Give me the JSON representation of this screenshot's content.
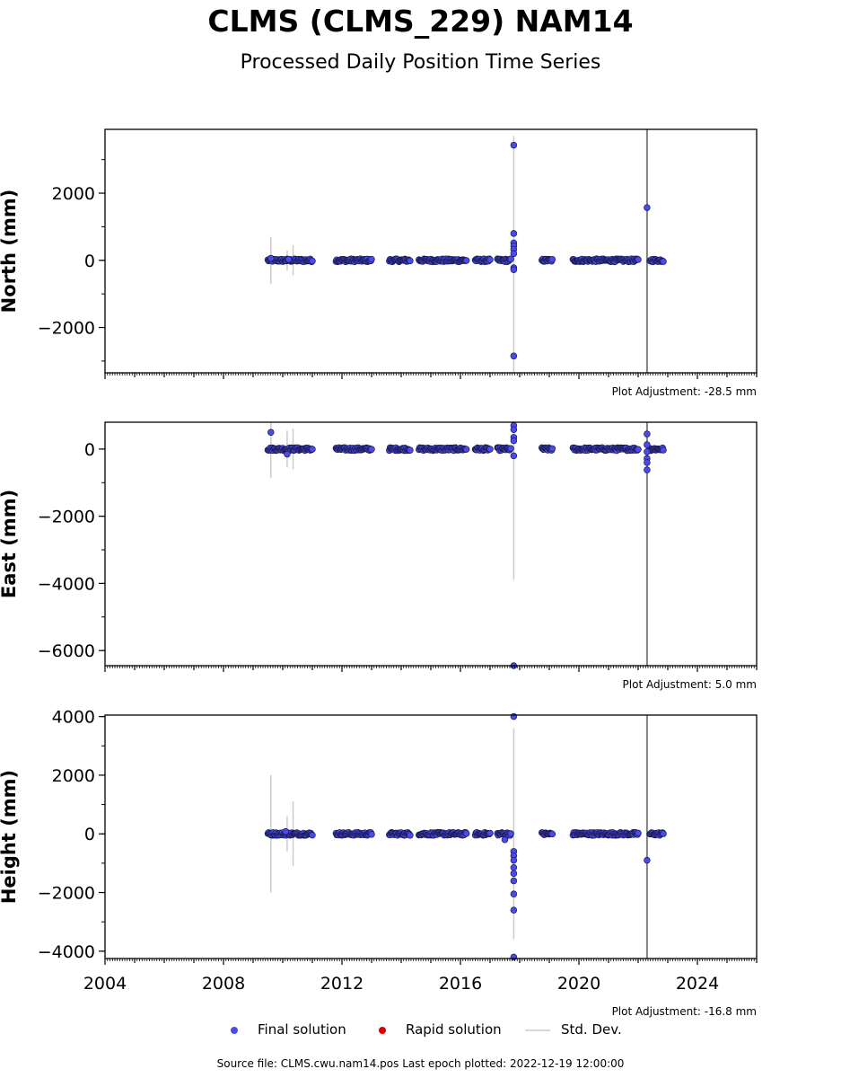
{
  "header": {
    "title": "CLMS (CLMS_229) NAM14",
    "subtitle": "Processed Daily Position Time Series"
  },
  "legend": {
    "final_label": "Final solution",
    "rapid_label": "Rapid solution",
    "std_label": "Std. Dev."
  },
  "footer": {
    "source": "Source file: CLMS.cwu.nam14.pos  Last epoch plotted: 2022-12-19 12:00:00"
  },
  "colors": {
    "final": "#4b4bec",
    "final_edge": "#1a1a50",
    "rapid": "#dd0000",
    "stddev": "#cccccc",
    "marker_line": "#808080"
  },
  "chart_data": [
    {
      "type": "scatter",
      "ylabel": "North (mm)",
      "xlim": [
        2004,
        2026
      ],
      "ylim": [
        -3350,
        3900
      ],
      "yticks": [
        -2000,
        0,
        2000
      ],
      "xticks": [
        2004,
        2008,
        2012,
        2016,
        2020,
        2024
      ],
      "show_xtick_labels": false,
      "adjustment": "Plot Adjustment: -28.5 mm",
      "equipment_change": 2022.3,
      "segments": [
        [
          2009.5,
          2011.0
        ],
        [
          2011.8,
          2013.0
        ],
        [
          2013.6,
          2014.3
        ],
        [
          2014.6,
          2016.2
        ],
        [
          2016.5,
          2017.0
        ],
        [
          2017.25,
          2017.7
        ],
        [
          2018.75,
          2019.1
        ],
        [
          2019.8,
          2022.0
        ],
        [
          2022.4,
          2022.85
        ]
      ],
      "outliers": [
        [
          2017.8,
          3430
        ],
        [
          2017.8,
          800
        ],
        [
          2017.8,
          520
        ],
        [
          2017.8,
          430
        ],
        [
          2017.8,
          330
        ],
        [
          2017.8,
          200
        ],
        [
          2017.8,
          -220
        ],
        [
          2017.8,
          -280
        ],
        [
          2017.8,
          -2850
        ],
        [
          2022.3,
          1570
        ],
        [
          2009.6,
          60
        ],
        [
          2010.2,
          30
        ]
      ],
      "errorbars": [
        [
          2009.6,
          700
        ],
        [
          2010.15,
          300
        ],
        [
          2010.35,
          450
        ],
        [
          2017.8,
          3700
        ]
      ]
    },
    {
      "type": "scatter",
      "ylabel": "East (mm)",
      "xlim": [
        2004,
        2026
      ],
      "ylim": [
        -6450,
        800
      ],
      "yticks": [
        -6000,
        -4000,
        -2000,
        0
      ],
      "xticks": [
        2004,
        2008,
        2012,
        2016,
        2020,
        2024
      ],
      "show_xtick_labels": false,
      "adjustment": "Plot Adjustment: 5.0 mm",
      "equipment_change": 2022.3,
      "segments": [
        [
          2009.5,
          2011.0
        ],
        [
          2011.8,
          2013.0
        ],
        [
          2013.6,
          2014.3
        ],
        [
          2014.6,
          2016.2
        ],
        [
          2016.5,
          2017.0
        ],
        [
          2017.25,
          2017.7
        ],
        [
          2018.75,
          2019.1
        ],
        [
          2019.8,
          2022.0
        ],
        [
          2022.4,
          2022.85
        ]
      ],
      "outliers": [
        [
          2009.6,
          500
        ],
        [
          2010.15,
          -150
        ],
        [
          2017.8,
          700
        ],
        [
          2017.8,
          580
        ],
        [
          2017.8,
          350
        ],
        [
          2017.8,
          250
        ],
        [
          2017.8,
          -200
        ],
        [
          2017.8,
          -6470
        ],
        [
          2022.3,
          450
        ],
        [
          2022.3,
          130
        ],
        [
          2022.3,
          -80
        ],
        [
          2022.3,
          -280
        ],
        [
          2022.3,
          -400
        ],
        [
          2022.3,
          -620
        ]
      ],
      "errorbars": [
        [
          2009.6,
          850
        ],
        [
          2010.15,
          550
        ],
        [
          2010.35,
          600
        ],
        [
          2017.8,
          3900
        ]
      ]
    },
    {
      "type": "scatter",
      "ylabel": "Height (mm)",
      "xlim": [
        2004,
        2026
      ],
      "ylim": [
        -4250,
        4050
      ],
      "yticks": [
        -4000,
        -2000,
        0,
        2000,
        4000
      ],
      "xticks": [
        2004,
        2008,
        2012,
        2016,
        2020,
        2024
      ],
      "show_xtick_labels": true,
      "adjustment": "Plot Adjustment: -16.8 mm",
      "equipment_change": 2022.3,
      "segments": [
        [
          2009.5,
          2011.0
        ],
        [
          2011.8,
          2013.0
        ],
        [
          2013.6,
          2014.3
        ],
        [
          2014.6,
          2016.2
        ],
        [
          2016.5,
          2017.0
        ],
        [
          2017.25,
          2017.7
        ],
        [
          2018.75,
          2019.1
        ],
        [
          2019.8,
          2022.0
        ],
        [
          2022.4,
          2022.85
        ]
      ],
      "outliers": [
        [
          2017.8,
          4000
        ],
        [
          2017.5,
          -200
        ],
        [
          2017.8,
          -600
        ],
        [
          2017.8,
          -750
        ],
        [
          2017.8,
          -900
        ],
        [
          2017.8,
          -1150
        ],
        [
          2017.8,
          -1350
        ],
        [
          2017.8,
          -1600
        ],
        [
          2017.8,
          -2050
        ],
        [
          2017.8,
          -2600
        ],
        [
          2017.8,
          -4200
        ],
        [
          2022.3,
          -900
        ],
        [
          2010.1,
          80
        ]
      ],
      "errorbars": [
        [
          2009.6,
          2000
        ],
        [
          2010.15,
          600
        ],
        [
          2010.35,
          1100
        ],
        [
          2017.8,
          3600
        ]
      ]
    }
  ]
}
